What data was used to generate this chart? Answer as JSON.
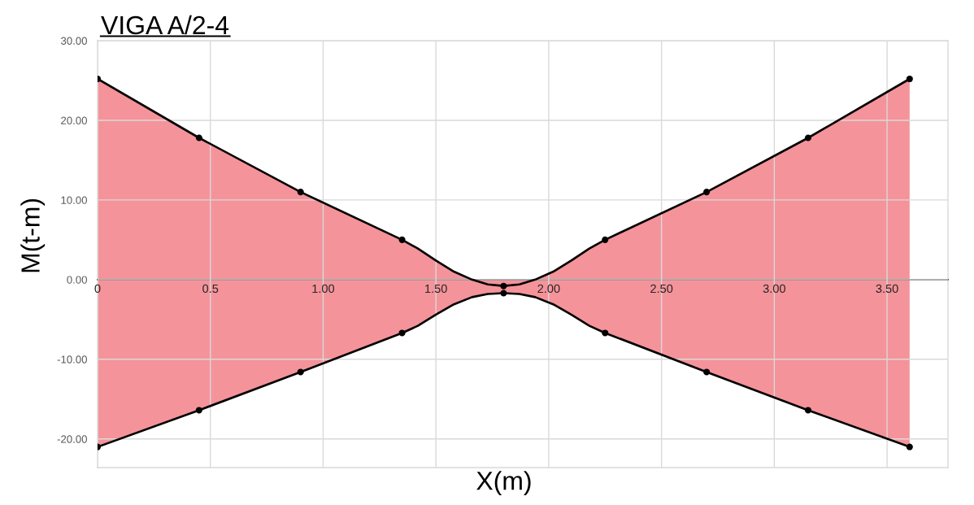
{
  "chart_data": {
    "type": "area",
    "title": "VIGA A/2-4",
    "xlabel": "X(m)",
    "ylabel": "M(t-m)",
    "x": [
      0,
      0.45,
      0.9,
      1.35,
      1.8,
      2.25,
      2.7,
      3.15,
      3.6
    ],
    "series": [
      {
        "color": "#f5939a",
        "x": [
          0,
          0.45,
          0.9,
          1.35,
          1.42,
          1.5,
          1.58,
          1.66,
          1.73,
          1.8,
          1.87,
          1.94,
          2.02,
          2.1,
          2.18,
          2.25,
          2.7,
          3.15,
          3.6
        ],
        "values": [
          25.2,
          17.8,
          11.0,
          5.0,
          3.9,
          2.4,
          1.0,
          0.0,
          -0.6,
          -0.8,
          -0.6,
          0.0,
          1.0,
          2.4,
          3.9,
          5.0,
          11.0,
          17.8,
          25.2
        ]
      },
      {
        "color": "#f5939a",
        "x": [
          0,
          0.45,
          0.9,
          1.35,
          1.42,
          1.5,
          1.58,
          1.66,
          1.73,
          1.8,
          1.87,
          1.94,
          2.02,
          2.1,
          2.18,
          2.25,
          2.7,
          3.15,
          3.6
        ],
        "values": [
          -21.0,
          -16.4,
          -11.6,
          -6.7,
          -5.8,
          -4.4,
          -3.1,
          -2.2,
          -1.8,
          -1.7,
          -1.8,
          -2.2,
          -3.1,
          -4.4,
          -5.8,
          -6.7,
          -11.6,
          -16.4,
          -21.0
        ]
      },
      {
        "type": "scatter",
        "color": "#000000",
        "marker": "circle",
        "values": [
          25.2,
          17.8,
          11.0,
          5.0,
          -0.8,
          5.0,
          11.0,
          17.8,
          25.2
        ]
      },
      {
        "type": "scatter",
        "color": "#000000",
        "marker": "circle",
        "values": [
          -21.0,
          -16.4,
          -11.6,
          -6.7,
          -1.7,
          -6.7,
          -11.6,
          -16.4,
          -21.0
        ]
      }
    ],
    "line_style": "solid",
    "grid": true,
    "xlim": [
      0,
      3.77
    ],
    "ylim": [
      -23.6,
      30
    ],
    "xticks": [
      {
        "value": 0,
        "label": "0"
      },
      {
        "value": 0.5,
        "label": "0.5"
      },
      {
        "value": 1,
        "label": "1.00"
      },
      {
        "value": 1.5,
        "label": "1.50"
      },
      {
        "value": 2,
        "label": "2.00"
      },
      {
        "value": 2.5,
        "label": "2.50"
      },
      {
        "value": 3,
        "label": "3.00"
      },
      {
        "value": 3.5,
        "label": "3.50"
      }
    ],
    "yticks": [
      {
        "value": -20,
        "label": "-20.00"
      },
      {
        "value": -10,
        "label": "-10.00"
      },
      {
        "value": 0,
        "label": "0.00"
      },
      {
        "value": 10,
        "label": "10.00"
      },
      {
        "value": 20,
        "label": "20.00"
      },
      {
        "value": 30,
        "label": "30.00"
      }
    ]
  }
}
